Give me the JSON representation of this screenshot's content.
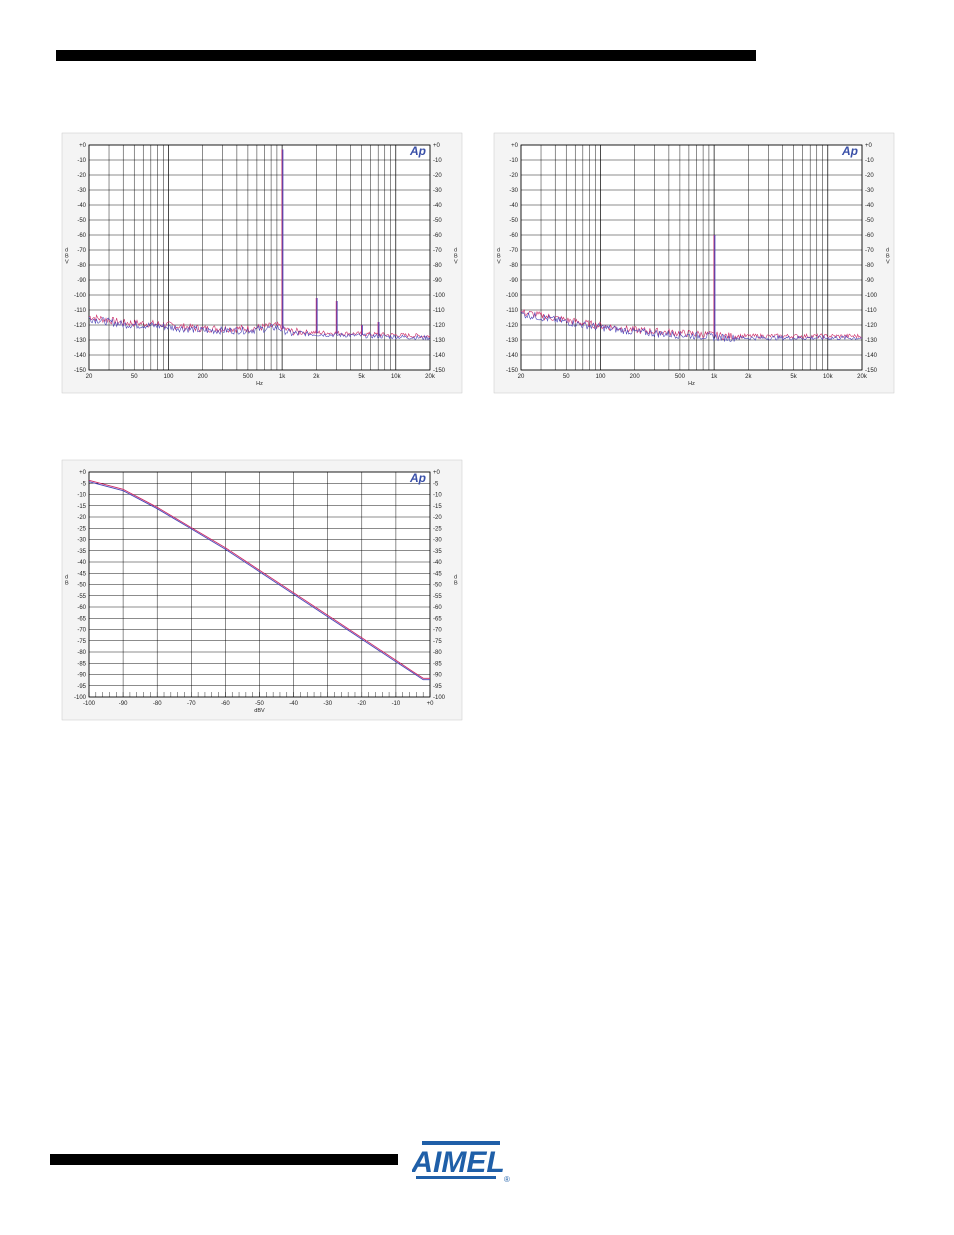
{
  "colors": {
    "trace_a": "#cc2a66",
    "trace_b": "#4b45b8",
    "grid": "#000000",
    "ap_badge": "#3a50a8",
    "atmel_blue": "#1f5fa8"
  },
  "logo": {
    "text": "AIMEL",
    "registered": "®"
  },
  "chart_data": [
    {
      "type": "line",
      "title": "",
      "badge": "Ap",
      "xlabel": "Hz",
      "ylabel": "d B V",
      "ylabel_right": "d B V",
      "x_scale": "log",
      "xlim": [
        20,
        20000
      ],
      "ylim": [
        -150,
        0
      ],
      "x_ticks": [
        20,
        50,
        100,
        200,
        500,
        1000,
        2000,
        5000,
        10000,
        20000
      ],
      "x_tick_labels": [
        "20",
        "50",
        "100",
        "200",
        "500",
        "1k",
        "2k",
        "5k",
        "10k",
        "20k"
      ],
      "y_ticks": [
        0,
        -10,
        -20,
        -30,
        -40,
        -50,
        -60,
        -70,
        -80,
        -90,
        -100,
        -110,
        -120,
        -130,
        -140,
        -150
      ],
      "y_tick_labels": [
        "+0",
        "-10",
        "-20",
        "-30",
        "-40",
        "-50",
        "-60",
        "-70",
        "-80",
        "-90",
        "-100",
        "-110",
        "-120",
        "-130",
        "-140",
        "-150"
      ],
      "grid": true,
      "noise_floor": [
        [
          20,
          -115
        ],
        [
          40,
          -119
        ],
        [
          80,
          -120
        ],
        [
          200,
          -123
        ],
        [
          500,
          -123
        ],
        [
          900,
          -121
        ],
        [
          1200,
          -125
        ],
        [
          3000,
          -126
        ],
        [
          20000,
          -128
        ]
      ],
      "peaks": [
        [
          1000,
          -3
        ],
        [
          2000,
          -102
        ],
        [
          3000,
          -104
        ],
        [
          5000,
          -120
        ],
        [
          7000,
          -118
        ]
      ],
      "series": [
        {
          "name": "",
          "color": "#cc2a66"
        },
        {
          "name": "",
          "color": "#4b45b8"
        }
      ]
    },
    {
      "type": "line",
      "title": "",
      "badge": "Ap",
      "xlabel": "Hz",
      "ylabel": "d B V",
      "ylabel_right": "d B V",
      "x_scale": "log",
      "xlim": [
        20,
        20000
      ],
      "ylim": [
        -150,
        0
      ],
      "x_ticks": [
        20,
        50,
        100,
        200,
        500,
        1000,
        2000,
        5000,
        10000,
        20000
      ],
      "x_tick_labels": [
        "20",
        "50",
        "100",
        "200",
        "500",
        "1k",
        "2k",
        "5k",
        "10k",
        "20k"
      ],
      "y_ticks": [
        0,
        -10,
        -20,
        -30,
        -40,
        -50,
        -60,
        -70,
        -80,
        -90,
        -100,
        -110,
        -120,
        -130,
        -140,
        -150
      ],
      "y_tick_labels": [
        "+0",
        "-10",
        "-20",
        "-30",
        "-40",
        "-50",
        "-60",
        "-70",
        "-80",
        "-90",
        "-100",
        "-110",
        "-120",
        "-130",
        "-140",
        "-150"
      ],
      "grid": true,
      "noise_floor": [
        [
          20,
          -112
        ],
        [
          40,
          -116
        ],
        [
          80,
          -120
        ],
        [
          200,
          -124
        ],
        [
          500,
          -126
        ],
        [
          900,
          -127
        ],
        [
          1200,
          -128
        ],
        [
          3000,
          -128
        ],
        [
          20000,
          -128
        ]
      ],
      "peaks": [
        [
          1000,
          -60
        ]
      ],
      "series": [
        {
          "name": "",
          "color": "#cc2a66"
        },
        {
          "name": "",
          "color": "#4b45b8"
        }
      ]
    },
    {
      "type": "line",
      "title": "",
      "badge": "Ap",
      "xlabel": "dBV",
      "ylabel": "d B",
      "ylabel_right": "d B",
      "x_scale": "linear",
      "xlim": [
        -100,
        0
      ],
      "ylim": [
        -100,
        0
      ],
      "x_ticks": [
        -100,
        -90,
        -80,
        -70,
        -60,
        -50,
        -40,
        -30,
        -20,
        -10,
        0
      ],
      "x_tick_labels": [
        "-100",
        "-90",
        "-80",
        "-70",
        "-60",
        "-50",
        "-40",
        "-30",
        "-20",
        "-10",
        "+0"
      ],
      "y_ticks": [
        0,
        -5,
        -10,
        -15,
        -20,
        -25,
        -30,
        -35,
        -40,
        -45,
        -50,
        -55,
        -60,
        -65,
        -70,
        -75,
        -80,
        -85,
        -90,
        -95,
        -100
      ],
      "y_tick_labels": [
        "+0",
        "-5",
        "-10",
        "-15",
        "-20",
        "-25",
        "-30",
        "-35",
        "-40",
        "-45",
        "-50",
        "-55",
        "-60",
        "-65",
        "-70",
        "-75",
        "-80",
        "-85",
        "-90",
        "-95",
        "-100"
      ],
      "grid": true,
      "points": [
        [
          -100,
          -4
        ],
        [
          -95,
          -6
        ],
        [
          -90,
          -8
        ],
        [
          -85,
          -12
        ],
        [
          -80,
          -16
        ],
        [
          -70,
          -25
        ],
        [
          -60,
          -34
        ],
        [
          -50,
          -44
        ],
        [
          -40,
          -54
        ],
        [
          -30,
          -64
        ],
        [
          -20,
          -74
        ],
        [
          -10,
          -84
        ],
        [
          -5,
          -89
        ],
        [
          -2,
          -92
        ],
        [
          0,
          -92
        ]
      ],
      "series": [
        {
          "name": "",
          "color": "#cc2a66"
        },
        {
          "name": "",
          "color": "#4b45b8"
        }
      ]
    }
  ]
}
